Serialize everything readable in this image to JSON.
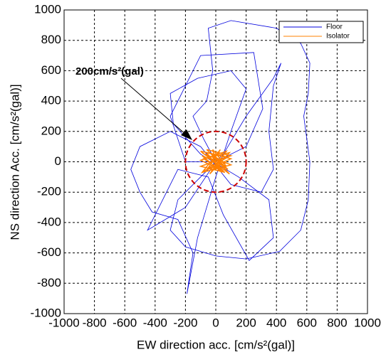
{
  "chart_data": {
    "type": "line",
    "xlabel": "EW direction acc. [cm/s²(gal)]",
    "ylabel": "NS direction Acc. [cm/s²(gal)]",
    "xlim": [
      -1000,
      1000
    ],
    "ylim": [
      -1000,
      1000
    ],
    "xticks": [
      -1000,
      -800,
      -600,
      -400,
      -200,
      0,
      200,
      400,
      600,
      800,
      1000
    ],
    "yticks": [
      -1000,
      -800,
      -600,
      -400,
      -200,
      0,
      200,
      400,
      600,
      800,
      1000
    ],
    "grid": true,
    "legend": "upper right",
    "annotation": {
      "text": "200cm/s²(gal)",
      "radius": 200,
      "color": "#cc0000"
    },
    "series": [
      {
        "name": "Floor",
        "color": "#0000dd",
        "x": [
          0,
          -80,
          -150,
          -60,
          -20,
          -50,
          100,
          400,
          560,
          620,
          610,
          580,
          600,
          620,
          610,
          560,
          420,
          200,
          0,
          -200,
          -300,
          -250,
          -100,
          50,
          200,
          380,
          430,
          380,
          350,
          380,
          300,
          100,
          -100,
          -300,
          -500,
          -560,
          -500,
          -420,
          -250,
          -150,
          -190,
          -120,
          0,
          100,
          200,
          100,
          -120,
          -300,
          -280,
          -100,
          150,
          350,
          380,
          220,
          50,
          -50,
          -250,
          -450,
          -200,
          0,
          200,
          310,
          250,
          -100,
          -300,
          -200,
          0
        ],
        "values": [
          0,
          150,
          300,
          400,
          600,
          880,
          930,
          880,
          780,
          650,
          450,
          300,
          150,
          0,
          -250,
          -450,
          -590,
          -640,
          -620,
          -560,
          -450,
          -250,
          -100,
          50,
          300,
          550,
          650,
          500,
          200,
          -50,
          -200,
          -150,
          100,
          200,
          100,
          -50,
          -200,
          -330,
          -380,
          -600,
          -870,
          -500,
          -100,
          200,
          480,
          600,
          550,
          450,
          250,
          50,
          -100,
          -250,
          -500,
          -650,
          -350,
          -100,
          -50,
          -450,
          -300,
          0,
          100,
          350,
          720,
          700,
          300,
          0,
          0
        ]
      },
      {
        "name": "Isolator",
        "color": "#ff8000",
        "x": [
          0,
          -90,
          80,
          -60,
          100,
          -100,
          60,
          -80,
          90,
          -40,
          70,
          -100,
          50,
          -70,
          100,
          -90,
          30,
          -50,
          80,
          -100,
          90,
          -30,
          60,
          -80,
          100,
          -60,
          40,
          -90,
          70,
          -20,
          0
        ],
        "values": [
          0,
          60,
          -50,
          80,
          40,
          -30,
          -70,
          20,
          60,
          -80,
          70,
          10,
          -60,
          50,
          -20,
          -70,
          80,
          -40,
          30,
          70,
          -80,
          50,
          -10,
          -60,
          20,
          60,
          -70,
          40,
          -30,
          80,
          0
        ]
      }
    ]
  }
}
